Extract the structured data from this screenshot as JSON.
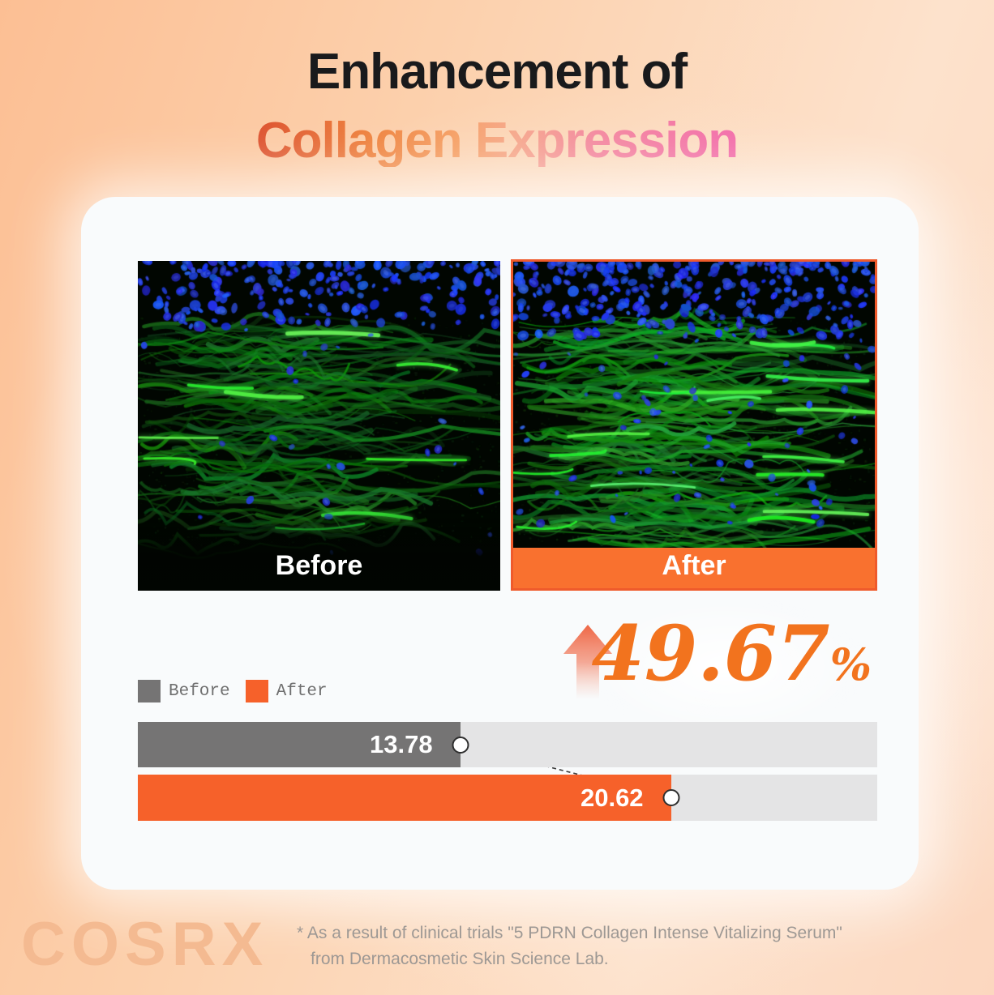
{
  "title": {
    "line1": "Enhancement of",
    "line2": "Collagen Expression"
  },
  "comparison": {
    "before_label": "Before",
    "after_label": "After"
  },
  "stat": {
    "value": "49.67",
    "percent_sign": "%",
    "direction_icon": "up-arrow"
  },
  "legend": [
    {
      "label": "Before",
      "color": "#757474"
    },
    {
      "label": "After",
      "color": "#F6612A"
    }
  ],
  "chart_data": {
    "type": "bar",
    "orientation": "horizontal",
    "categories": [
      "Before",
      "After"
    ],
    "values": [
      13.78,
      20.62
    ],
    "value_labels": [
      "13.78",
      "20.62"
    ],
    "bar_colors": [
      "#757474",
      "#F6612A"
    ],
    "track_color": "#E4E4E5",
    "fill_percent": [
      43.6,
      72.1
    ],
    "increase_percent": "49.67%",
    "legend_position": "top-left",
    "connector": {
      "style": "dashed",
      "between": [
        13.78,
        20.62
      ]
    }
  },
  "footer": {
    "brand": "COSRX",
    "disclaimer_line1": "* As a result of clinical trials \"5 PDRN Collagen Intense Vitalizing Serum\"",
    "disclaimer_line2": "from Dermacosmetic Skin Science Lab."
  },
  "colors": {
    "accent_orange": "#F6612A",
    "after_strip": "#F9712F",
    "after_border": "#EF5A2B",
    "stat_orange": "#F2731E",
    "before_gray": "#757474",
    "track_gray": "#E4E4E5",
    "title_gradient": [
      "#DD5330",
      "#EF8440",
      "#F6A268",
      "#F48BA0",
      "#F36FAB"
    ],
    "logo_peach": "#F4BA91",
    "disclaimer_gray": "#9D9894"
  }
}
